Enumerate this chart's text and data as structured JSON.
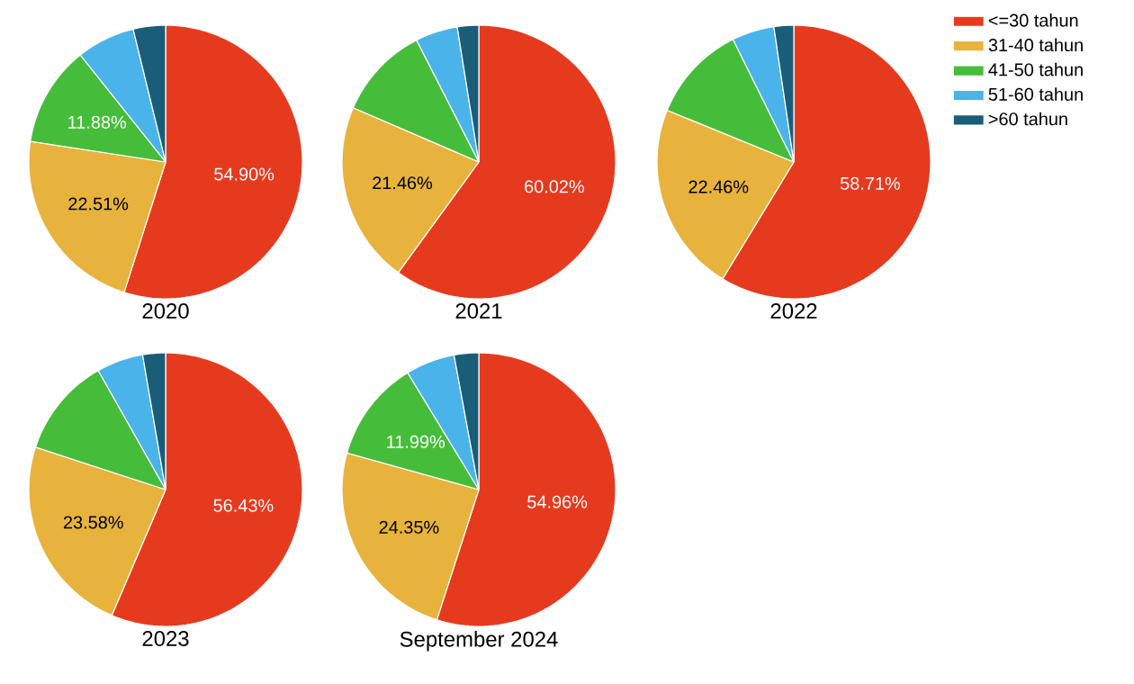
{
  "chart_data": [
    {
      "type": "pie",
      "title": "2020",
      "categories": [
        null,
        null,
        null,
        null,
        null
      ],
      "values": [
        54.9,
        22.51,
        11.88,
        6.9,
        3.81
      ],
      "colors": [
        "#e63a1f",
        "#e8b33c",
        "#46bd3a",
        "#4ab3ea",
        "#1a5d78"
      ],
      "value_labels": [
        "54.90%",
        "22.51%",
        "11.88%",
        null,
        null
      ]
    },
    {
      "type": "pie",
      "title": "2021",
      "categories": [
        null,
        null,
        null,
        null,
        null
      ],
      "values": [
        60.02,
        21.46,
        11.0,
        5.0,
        2.52
      ],
      "colors": [
        "#e63a1f",
        "#e8b33c",
        "#46bd3a",
        "#4ab3ea",
        "#1a5d78"
      ],
      "value_labels": [
        "60.02%",
        "21.46%",
        null,
        null,
        null
      ]
    },
    {
      "type": "pie",
      "title": "2022",
      "categories": [
        "<=30 tahun",
        "31-40 tahun",
        "41-50 tahun",
        "51-60 tahun",
        ">60 tahun"
      ],
      "values": [
        58.71,
        22.46,
        11.5,
        5.0,
        2.33
      ],
      "colors": [
        "#e63a1f",
        "#e8b33c",
        "#46bd3a",
        "#4ab3ea",
        "#1a5d78"
      ],
      "value_labels": [
        "58.71%",
        "22.46%",
        null,
        null,
        null
      ],
      "legend": "right"
    },
    {
      "type": "pie",
      "title": "2023",
      "categories": [
        null,
        null,
        null,
        null,
        null
      ],
      "values": [
        56.43,
        23.58,
        11.8,
        5.5,
        2.69
      ],
      "colors": [
        "#e63a1f",
        "#e8b33c",
        "#46bd3a",
        "#4ab3ea",
        "#1a5d78"
      ],
      "value_labels": [
        "56.43%",
        "23.58%",
        null,
        null,
        null
      ]
    },
    {
      "type": "pie",
      "title": "September 2024",
      "categories": [
        null,
        null,
        null,
        null,
        null
      ],
      "values": [
        54.96,
        24.35,
        11.99,
        5.8,
        2.9
      ],
      "colors": [
        "#e63a1f",
        "#e8b33c",
        "#46bd3a",
        "#4ab3ea",
        "#1a5d78"
      ],
      "value_labels": [
        "54.96%",
        "24.35%",
        "11.99%",
        null,
        null
      ]
    }
  ]
}
